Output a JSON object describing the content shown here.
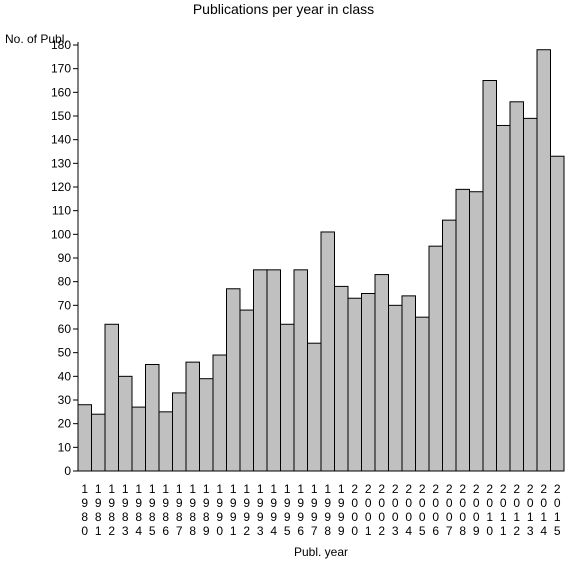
{
  "chart_data": {
    "type": "bar",
    "title": "Publications per year in class",
    "xlabel": "Publ. year",
    "ylabel": "No. of Publ.",
    "ylim": [
      0,
      180
    ],
    "yticks": [
      0,
      10,
      20,
      30,
      40,
      50,
      60,
      70,
      80,
      90,
      100,
      110,
      120,
      130,
      140,
      150,
      160,
      170,
      180
    ],
    "grid": false,
    "bar_color": "#c0c0c0",
    "categories": [
      "1980",
      "1981",
      "1982",
      "1983",
      "1984",
      "1985",
      "1986",
      "1987",
      "1988",
      "1989",
      "1990",
      "1991",
      "1992",
      "1993",
      "1994",
      "1995",
      "1996",
      "1997",
      "1998",
      "1999",
      "2000",
      "2001",
      "2002",
      "2003",
      "2004",
      "2005",
      "2006",
      "2007",
      "2008",
      "2009",
      "2010",
      "2011",
      "2012",
      "2013",
      "2014",
      "2015"
    ],
    "values": [
      28,
      24,
      62,
      40,
      27,
      45,
      25,
      33,
      46,
      39,
      49,
      77,
      68,
      85,
      85,
      62,
      85,
      54,
      101,
      78,
      73,
      75,
      83,
      70,
      74,
      65,
      95,
      106,
      119,
      118,
      165,
      146,
      156,
      149,
      178,
      133
    ]
  }
}
